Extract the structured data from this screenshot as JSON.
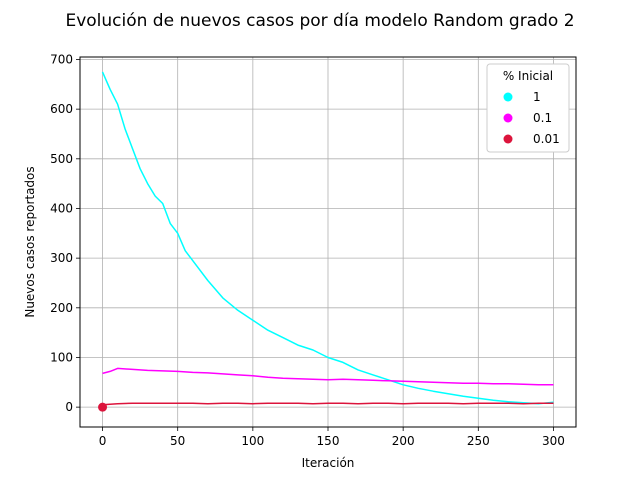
{
  "chart_data": {
    "type": "line",
    "title": "Evolución de nuevos casos por día modelo Random grado 2",
    "xlabel": "Iteración",
    "ylabel": "Nuevos casos reportados",
    "xlim": [
      -15,
      315
    ],
    "ylim": [
      -40,
      705
    ],
    "xticks": [
      0,
      50,
      100,
      150,
      200,
      250,
      300
    ],
    "yticks": [
      0,
      100,
      200,
      300,
      400,
      500,
      600,
      700
    ],
    "grid": true,
    "legend_title": "% Inicial",
    "legend_position": "top-right",
    "initial_point": {
      "x": 0,
      "y": 0
    },
    "series": [
      {
        "name": "1",
        "color": "#00ffff",
        "x": [
          0,
          5,
          10,
          15,
          20,
          25,
          30,
          35,
          40,
          45,
          50,
          55,
          60,
          70,
          80,
          90,
          100,
          110,
          120,
          130,
          140,
          150,
          160,
          170,
          180,
          190,
          200,
          210,
          220,
          230,
          240,
          250,
          260,
          270,
          280,
          290,
          300
        ],
        "values": [
          675,
          640,
          610,
          560,
          520,
          480,
          450,
          425,
          410,
          370,
          350,
          315,
          295,
          255,
          220,
          195,
          175,
          155,
          140,
          125,
          115,
          100,
          90,
          75,
          65,
          55,
          45,
          38,
          32,
          27,
          22,
          18,
          14,
          11,
          9,
          7,
          10
        ]
      },
      {
        "name": "0.1",
        "color": "#ff00ff",
        "x": [
          0,
          5,
          10,
          20,
          30,
          40,
          50,
          60,
          70,
          80,
          90,
          100,
          110,
          120,
          130,
          140,
          150,
          160,
          170,
          180,
          190,
          200,
          210,
          220,
          230,
          240,
          250,
          260,
          270,
          280,
          290,
          300
        ],
        "values": [
          68,
          72,
          78,
          76,
          74,
          73,
          72,
          70,
          69,
          67,
          65,
          63,
          60,
          58,
          57,
          56,
          55,
          56,
          55,
          54,
          53,
          52,
          51,
          50,
          49,
          48,
          48,
          47,
          47,
          46,
          45,
          45
        ]
      },
      {
        "name": "0.01",
        "color": "#dc143c",
        "x": [
          0,
          10,
          20,
          30,
          40,
          50,
          60,
          70,
          80,
          90,
          100,
          110,
          120,
          130,
          140,
          150,
          160,
          170,
          180,
          190,
          200,
          210,
          220,
          230,
          240,
          250,
          260,
          270,
          280,
          290,
          300
        ],
        "values": [
          5,
          7,
          8,
          8,
          8,
          8,
          8,
          7,
          8,
          8,
          7,
          8,
          8,
          8,
          7,
          8,
          8,
          7,
          8,
          8,
          7,
          8,
          8,
          8,
          7,
          8,
          8,
          8,
          7,
          8,
          8
        ]
      }
    ]
  }
}
